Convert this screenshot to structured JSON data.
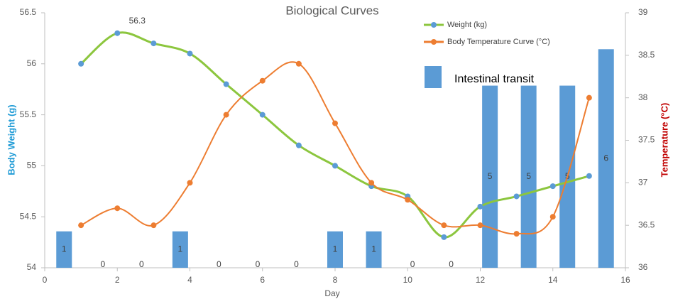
{
  "chart_data": {
    "type": "line",
    "title": "Biological Curves",
    "xlabel": "Day",
    "ylabel": "Body Weight (g)",
    "y2label": "Temperature (°C)",
    "xlim": [
      0,
      16
    ],
    "xticks": [
      0,
      2,
      4,
      6,
      8,
      10,
      12,
      14,
      16
    ],
    "ylim": [
      54,
      56.5
    ],
    "yticks": [
      54,
      54.5,
      55,
      55.5,
      56,
      56.5
    ],
    "y2lim": [
      36,
      39
    ],
    "y2ticks": [
      36,
      36.5,
      37,
      37.5,
      38,
      38.5,
      39
    ],
    "legend": "upper right",
    "x": [
      1,
      2,
      3,
      4,
      5,
      6,
      7,
      8,
      9,
      10,
      11,
      12,
      13,
      14,
      15
    ],
    "series": [
      {
        "name": "Weight (kg)",
        "color": "#8cc63e",
        "marker_color": "#5b9bd5",
        "values": [
          56,
          56.3,
          56.2,
          56.1,
          55.8,
          55.5,
          55.2,
          55.0,
          54.8,
          54.7,
          54.3,
          54.6,
          54.7,
          54.8,
          54.9
        ],
        "value_labels": [
          null,
          "56.3",
          null,
          null,
          null,
          null,
          null,
          null,
          null,
          null,
          null,
          null,
          null,
          null,
          null
        ]
      },
      {
        "name": "Body Temperature Curve (°C)",
        "color": "#ed7d31",
        "axis": "y2",
        "values": [
          36.5,
          36.7,
          36.5,
          37.0,
          37.8,
          38.2,
          38.4,
          37.7,
          37.0,
          36.8,
          36.5,
          36.5,
          36.4,
          36.6,
          38.0
        ]
      },
      {
        "name": "Intestinal transit",
        "type": "bar",
        "color": "#5b9bd5",
        "ylim": [
          0,
          7
        ],
        "values": [
          1,
          0,
          0,
          1,
          0,
          0,
          0,
          1,
          1,
          0,
          0,
          5,
          5,
          5,
          6
        ]
      }
    ]
  }
}
